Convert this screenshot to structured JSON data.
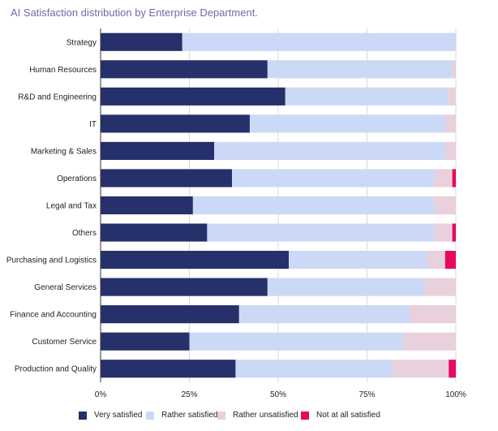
{
  "chart_data": {
    "type": "bar",
    "orientation": "horizontal",
    "stacked": true,
    "title": "AI Satisfaction distribution by Enterprise Department.",
    "categories": [
      "Strategy",
      "Human Resources",
      "R&D and Engineering",
      "IT",
      "Marketing & Sales",
      "Operations",
      "Legal and Tax",
      "Others",
      "Purchasing and Logistics",
      "General Services",
      "Finance and Accounting",
      "Customer Service",
      "Production and Quality"
    ],
    "series": [
      {
        "name": "Very satisfied",
        "color": "#26306b",
        "values": [
          23,
          47,
          52,
          42,
          32,
          37,
          26,
          30,
          53,
          47,
          39,
          25,
          38
        ]
      },
      {
        "name": "Rather satisfied",
        "color": "#cbd9f7",
        "values": [
          77,
          52,
          46,
          55,
          65,
          57,
          68,
          64,
          39,
          44,
          48,
          60,
          44
        ]
      },
      {
        "name": "Rather unsatisfied",
        "color": "#e8d0dd",
        "values": [
          0,
          1,
          2,
          3,
          3,
          5,
          6,
          5,
          5,
          9,
          13,
          15,
          16
        ]
      },
      {
        "name": "Not at all satisfied",
        "color": "#e8085f",
        "values": [
          0,
          0,
          0,
          0,
          0,
          1,
          0,
          1,
          3,
          0,
          0,
          0,
          2
        ]
      }
    ],
    "xlim": [
      0,
      100
    ],
    "xticks": [
      "0%",
      "25%",
      "50%",
      "75%",
      "100%"
    ],
    "xlabel": "",
    "ylabel": "",
    "legend_position": "bottom"
  }
}
